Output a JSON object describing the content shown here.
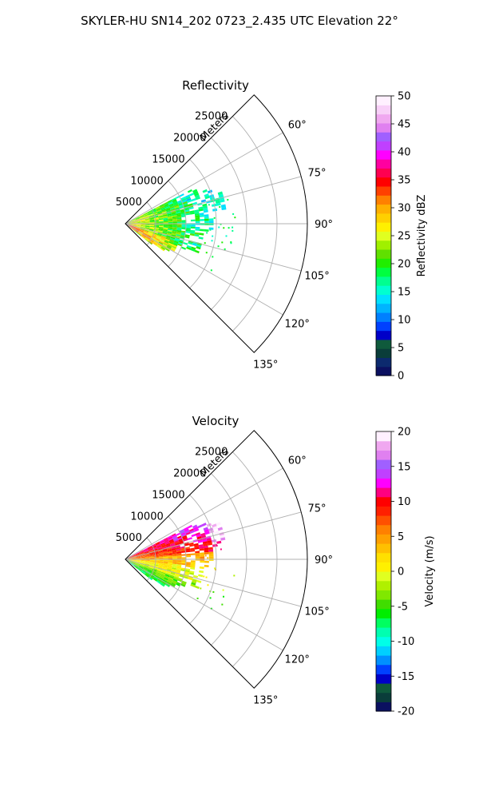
{
  "figure": {
    "suptitle": "SKYLER-HU  SN14_202  0723_2.435 UTC Elevation 22°"
  },
  "chart_data": [
    {
      "type": "heatmap",
      "subtype": "polar-sector (radar PPI)",
      "title": "Reflectivity",
      "radial_axis_label": "Meters",
      "radial_ticks": [
        5000,
        10000,
        15000,
        20000,
        25000
      ],
      "radial_range": [
        0,
        30000
      ],
      "angular_ticks": [
        "60°",
        "75°",
        "90°",
        "105°",
        "120°",
        "135°"
      ],
      "angular_tick_values": [
        60,
        75,
        90,
        105,
        120,
        135
      ],
      "angular_range": [
        45,
        135
      ],
      "grid": true,
      "colorbar": {
        "label": "Reflectivity dBZ",
        "range": [
          0,
          50
        ],
        "ticks": [
          0,
          5,
          10,
          15,
          20,
          25,
          30,
          35,
          40,
          45,
          50
        ]
      },
      "field_description": "Echoes extend ~17000 m in the north-east lobe and ~12000 m to the south-east; strongest returns (30–38 dBZ) near the radar along the 110–125° azimuths, mostly 15–25 dBZ elsewhere."
    },
    {
      "type": "heatmap",
      "subtype": "polar-sector (radar PPI)",
      "title": "Velocity",
      "radial_axis_label": "Meters",
      "radial_ticks": [
        5000,
        10000,
        15000,
        20000,
        25000
      ],
      "radial_range": [
        0,
        30000
      ],
      "angular_ticks": [
        "60°",
        "75°",
        "90°",
        "105°",
        "120°",
        "135°"
      ],
      "angular_tick_values": [
        60,
        75,
        90,
        105,
        120,
        135
      ],
      "angular_range": [
        45,
        135
      ],
      "grid": true,
      "colorbar": {
        "label": "Velocity (m/s)",
        "range": [
          -20,
          20
        ],
        "ticks": [
          -20,
          -15,
          -10,
          -5,
          0,
          5,
          10,
          15,
          20
        ]
      },
      "field_description": "Outbound velocities 5–12 m/s (red/orange) at azimuths 60–85°, up to ~15–18 m/s (magenta) near 15000–18000 m; near zero (yellow) around 90–105°; inbound −3 to −7 m/s (green) along 110–125°."
    }
  ],
  "colors": {
    "reflectivity_scale": [
      "#0b1060",
      "#0c2a6e",
      "#0a3d3a",
      "#0f5a3c",
      "#0000c8",
      "#0040ff",
      "#0080ff",
      "#00b4ff",
      "#00e0ff",
      "#00ffd0",
      "#00ff90",
      "#00ff40",
      "#20ee00",
      "#60e000",
      "#a0f000",
      "#e0ff20",
      "#fff000",
      "#ffd000",
      "#ffb000",
      "#ff8000",
      "#ff4000",
      "#ff0000",
      "#ff0050",
      "#ff00a0",
      "#ff00ff",
      "#c040ff",
      "#a060ff",
      "#e080f0",
      "#f0a8f0",
      "#f8d0f8",
      "#fff0ff"
    ],
    "velocity_scale": [
      "#0b1060",
      "#0a3d3a",
      "#0f5a3c",
      "#0000c8",
      "#0040ff",
      "#0090ff",
      "#00d0ff",
      "#00ffe8",
      "#00ffb0",
      "#00ff60",
      "#00ee00",
      "#40dd00",
      "#80e800",
      "#b0f000",
      "#e0ff20",
      "#fff000",
      "#ffe000",
      "#ffc000",
      "#ffa000",
      "#ff8000",
      "#ff5000",
      "#ff2000",
      "#ff0000",
      "#ff0080",
      "#ff00ff",
      "#c040ff",
      "#a060ff",
      "#e080f0",
      "#f0a8f0",
      "#fff0ff"
    ]
  }
}
